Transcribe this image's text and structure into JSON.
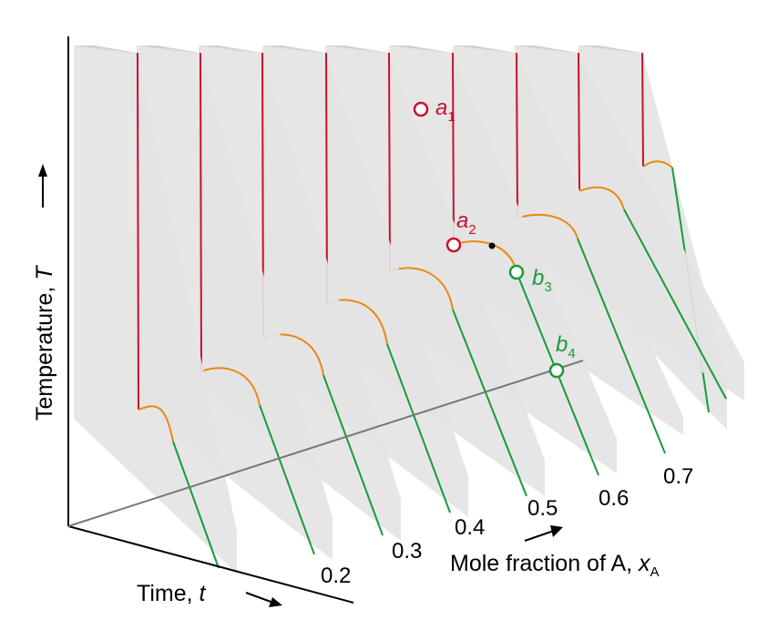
{
  "colors": {
    "liquid": "#c8102e",
    "freezing": "#e8890c",
    "solid": "#1a9a3a",
    "panel": "#e4e4e4",
    "panel_edge": "#cfcfcf",
    "axis": "#000000",
    "baseline": "#777777"
  },
  "axes": {
    "temperature_label": "Temperature, ",
    "temperature_symbol": "T",
    "time_label": "Time, ",
    "time_symbol": "t",
    "composition_label": "Mole fraction of A, ",
    "composition_symbol": "x",
    "composition_subscript": "A"
  },
  "composition_ticks": [
    "0.2",
    "0.3",
    "0.4",
    "0.5",
    "0.6",
    "0.7"
  ],
  "points": {
    "a1": {
      "letter": "a",
      "sub": "1"
    },
    "a2": {
      "letter": "a",
      "sub": "2"
    },
    "b3": {
      "letter": "b",
      "sub": "3"
    },
    "b4": {
      "letter": "b",
      "sub": "4"
    }
  }
}
